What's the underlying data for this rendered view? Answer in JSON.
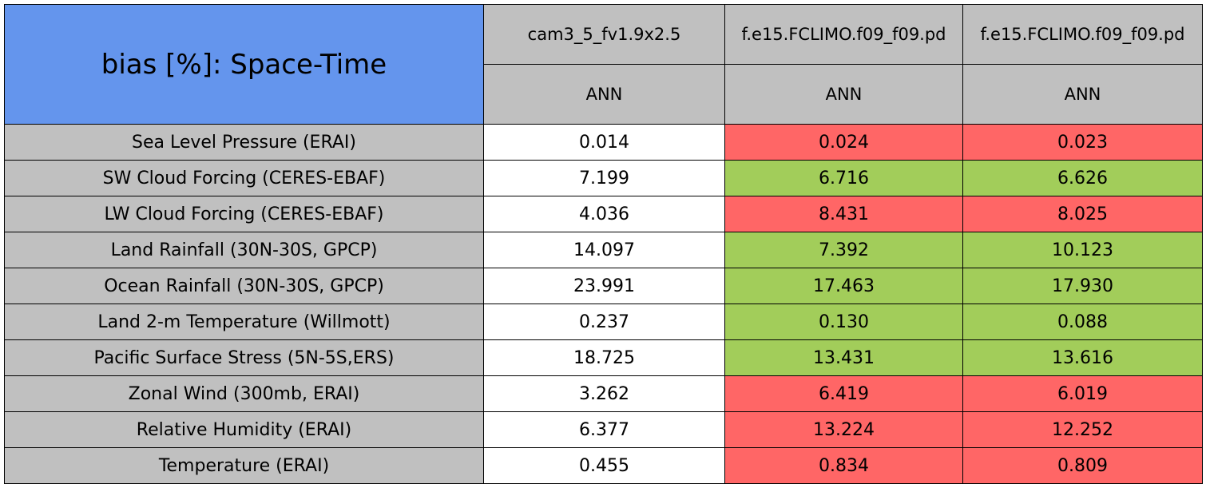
{
  "table": {
    "title": "bias [%]: Space-Time",
    "columns": [
      "cam3_5_fv1.9x2.5",
      "f.e15.FCLIMO.f09_f09.pd",
      "f.e15.FCLIMO.f09_f09.pd"
    ],
    "seasons": [
      "ANN",
      "ANN",
      "ANN"
    ],
    "rows": [
      {
        "label": "Sea Level Pressure (ERAI)",
        "values": [
          "0.014",
          "0.024",
          "0.023"
        ],
        "fills": [
          "#ffffff",
          "#ff6666",
          "#ff6666"
        ]
      },
      {
        "label": "SW Cloud Forcing (CERES-EBAF)",
        "values": [
          "7.199",
          "6.716",
          "6.626"
        ],
        "fills": [
          "#ffffff",
          "#a2cd5a",
          "#a2cd5a"
        ]
      },
      {
        "label": "LW Cloud Forcing (CERES-EBAF)",
        "values": [
          "4.036",
          "8.431",
          "8.025"
        ],
        "fills": [
          "#ffffff",
          "#ff6666",
          "#ff6666"
        ]
      },
      {
        "label": "Land Rainfall (30N-30S, GPCP)",
        "values": [
          "14.097",
          "7.392",
          "10.123"
        ],
        "fills": [
          "#ffffff",
          "#a2cd5a",
          "#a2cd5a"
        ]
      },
      {
        "label": "Ocean Rainfall (30N-30S, GPCP)",
        "values": [
          "23.991",
          "17.463",
          "17.930"
        ],
        "fills": [
          "#ffffff",
          "#a2cd5a",
          "#a2cd5a"
        ]
      },
      {
        "label": "Land 2-m Temperature (Willmott)",
        "values": [
          "0.237",
          "0.130",
          "0.088"
        ],
        "fills": [
          "#ffffff",
          "#a2cd5a",
          "#a2cd5a"
        ]
      },
      {
        "label": "Pacific Surface Stress (5N-5S,ERS)",
        "values": [
          "18.725",
          "13.431",
          "13.616"
        ],
        "fills": [
          "#ffffff",
          "#a2cd5a",
          "#a2cd5a"
        ]
      },
      {
        "label": "Zonal Wind (300mb, ERAI)",
        "values": [
          "3.262",
          "6.419",
          "6.019"
        ],
        "fills": [
          "#ffffff",
          "#ff6666",
          "#ff6666"
        ]
      },
      {
        "label": "Relative Humidity (ERAI)",
        "values": [
          "6.377",
          "13.224",
          "12.252"
        ],
        "fills": [
          "#ffffff",
          "#ff6666",
          "#ff6666"
        ]
      },
      {
        "label": "Temperature (ERAI)",
        "values": [
          "0.455",
          "0.834",
          "0.809"
        ],
        "fills": [
          "#ffffff",
          "#ff6666",
          "#ff6666"
        ]
      }
    ]
  }
}
